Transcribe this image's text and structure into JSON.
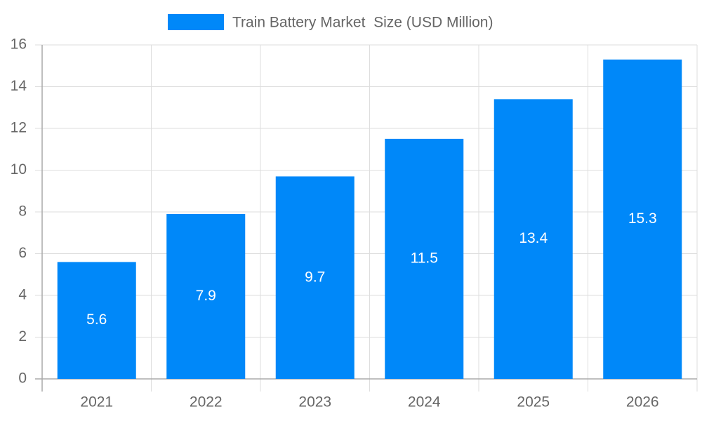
{
  "chart_data": {
    "type": "bar",
    "categories": [
      "2021",
      "2022",
      "2023",
      "2024",
      "2025",
      "2026"
    ],
    "series": [
      {
        "name": "Train Battery Market  Size (USD Million)",
        "color": "#0088f9",
        "values": [
          5.6,
          7.9,
          9.7,
          11.5,
          13.4,
          15.3
        ]
      }
    ],
    "ylim": [
      0,
      16
    ],
    "yticks": [
      0,
      2,
      4,
      6,
      8,
      10,
      12,
      14,
      16
    ],
    "grid": true,
    "legend": "top",
    "data_labels": true
  }
}
